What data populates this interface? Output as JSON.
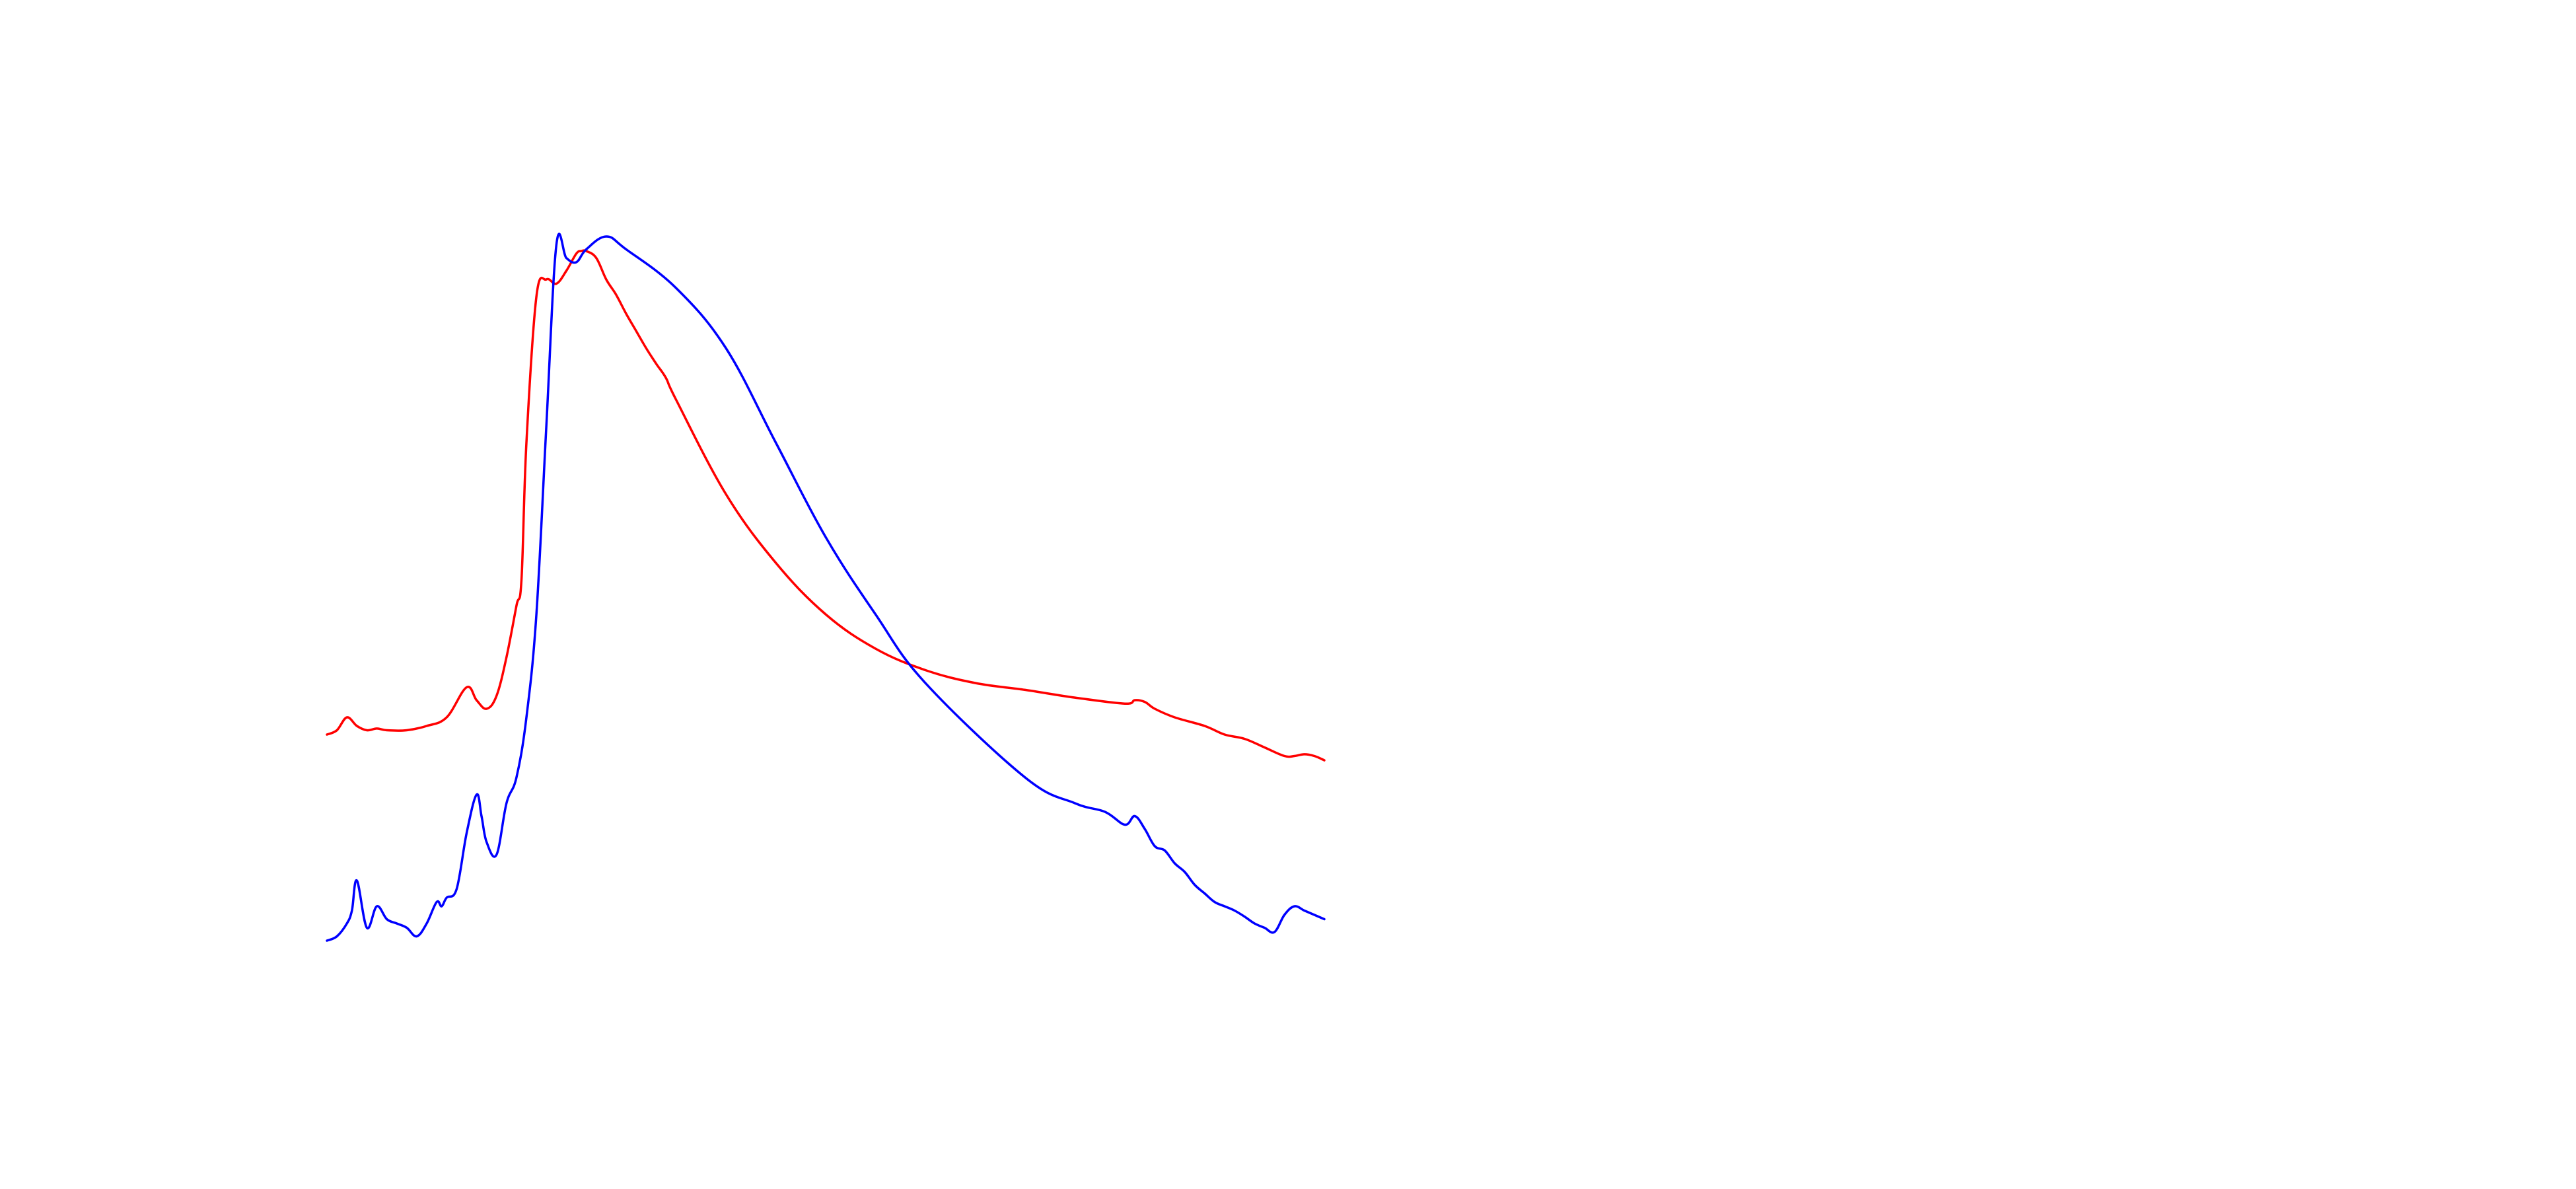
{
  "chart_data": {
    "type": "line",
    "title": "",
    "xlabel": "",
    "ylabel": "",
    "axes_visible": false,
    "grid": false,
    "legend": "none",
    "xlim": [
      0,
      100
    ],
    "ylim": [
      0,
      100
    ],
    "series": [
      {
        "color": "#ff0000",
        "x": [
          0,
          1,
          2,
          3,
          4,
          5,
          6,
          8,
          10,
          12,
          14,
          15,
          16,
          17,
          18,
          19,
          19.5,
          20,
          21,
          22,
          23,
          24,
          25,
          25.5,
          26,
          27,
          28,
          29,
          30,
          31,
          32,
          33,
          34,
          35,
          40,
          45,
          50,
          55,
          60,
          65,
          70,
          75,
          80,
          81,
          82,
          83,
          85,
          88,
          90,
          92,
          94,
          96,
          97,
          98,
          99,
          100
        ],
        "values": [
          26.0,
          26.5,
          28.0,
          27.0,
          26.5,
          26.7,
          26.5,
          26.5,
          27.0,
          28.0,
          31.5,
          30.0,
          29.0,
          30.5,
          35.0,
          41.0,
          44.0,
          60.0,
          77.0,
          79.0,
          78.5,
          80.0,
          82.0,
          82.3,
          82.3,
          81.5,
          79.0,
          77.2,
          75.0,
          73.0,
          71.0,
          69.2,
          67.5,
          65.0,
          54.0,
          46.0,
          40.0,
          36.0,
          33.5,
          32.0,
          31.2,
          30.3,
          29.6,
          30.0,
          29.8,
          29.0,
          28.0,
          27.0,
          26.0,
          25.5,
          24.5,
          23.5,
          23.5,
          23.7,
          23.5,
          23.0
        ]
      },
      {
        "color": "#0000ff",
        "x": [
          0,
          1,
          2,
          2.5,
          3,
          4,
          5,
          6,
          7,
          8,
          9,
          10,
          11,
          11.5,
          12,
          13,
          14,
          15,
          15.5,
          16,
          17,
          18,
          19,
          20,
          21,
          22,
          23,
          24,
          25,
          26,
          28,
          30,
          35,
          40,
          45,
          50,
          55,
          60,
          70,
          75,
          78,
          80,
          81,
          82,
          83,
          84,
          85,
          86,
          87,
          88,
          89,
          90,
          91,
          92,
          93,
          94,
          95,
          96,
          97,
          98,
          99,
          100
        ],
        "values": [
          2.0,
          2.5,
          4.0,
          5.5,
          9.0,
          3.5,
          6.0,
          4.5,
          4.0,
          3.5,
          2.5,
          4.0,
          6.5,
          6.0,
          7.0,
          8.0,
          14.5,
          19.0,
          16.5,
          13.5,
          12.0,
          18.0,
          21.0,
          28.0,
          40.0,
          62.0,
          83.0,
          81.5,
          81.0,
          82.5,
          84.0,
          82.5,
          78.0,
          71.0,
          60.0,
          49.0,
          40.0,
          32.0,
          21.0,
          18.0,
          17.0,
          15.5,
          16.5,
          15.0,
          13.0,
          12.5,
          11.0,
          10.0,
          8.5,
          7.5,
          6.5,
          6.0,
          5.5,
          4.8,
          4.0,
          3.5,
          3.0,
          5.0,
          6.0,
          5.5,
          5.0,
          4.5
        ]
      }
    ]
  }
}
